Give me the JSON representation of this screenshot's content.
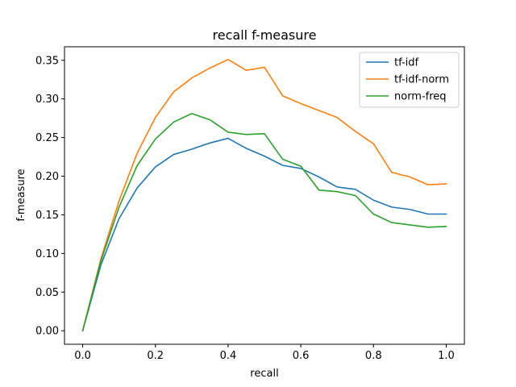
{
  "chart_data": {
    "type": "line",
    "title": "recall f-measure",
    "xlabel": "recall",
    "ylabel": "f-measure",
    "xlim": [
      -0.05,
      1.05
    ],
    "ylim": [
      -0.0175,
      0.3675
    ],
    "x_ticks": [
      0.0,
      0.2,
      0.4,
      0.6,
      0.8,
      1.0
    ],
    "x_tick_labels": [
      "0.0",
      "0.2",
      "0.4",
      "0.6",
      "0.8",
      "1.0"
    ],
    "y_ticks": [
      0.0,
      0.05,
      0.1,
      0.15,
      0.2,
      0.25,
      0.3,
      0.35
    ],
    "y_tick_labels": [
      "0.00",
      "0.05",
      "0.10",
      "0.15",
      "0.20",
      "0.25",
      "0.30",
      "0.35"
    ],
    "grid": false,
    "legend": "top-right",
    "x": [
      0.0,
      0.05,
      0.1,
      0.15,
      0.2,
      0.25,
      0.3,
      0.35,
      0.4,
      0.45,
      0.5,
      0.55,
      0.6,
      0.65,
      0.7,
      0.75,
      0.8,
      0.85,
      0.9,
      0.95,
      1.0
    ],
    "series": [
      {
        "name": "tf-idf",
        "color": "#1f77b4",
        "values": [
          0.0,
          0.085,
          0.145,
          0.185,
          0.212,
          0.228,
          0.235,
          0.243,
          0.249,
          0.236,
          0.226,
          0.214,
          0.21,
          0.199,
          0.186,
          0.183,
          0.169,
          0.16,
          0.157,
          0.151,
          0.151
        ]
      },
      {
        "name": "tf-idf-norm",
        "color": "#ff7f0e",
        "values": [
          0.0,
          0.093,
          0.168,
          0.23,
          0.276,
          0.309,
          0.327,
          0.34,
          0.351,
          0.337,
          0.341,
          0.304,
          0.294,
          0.285,
          0.276,
          0.258,
          0.242,
          0.205,
          0.199,
          0.189,
          0.19
        ]
      },
      {
        "name": "norm-freq",
        "color": "#2ca02c",
        "values": [
          0.0,
          0.09,
          0.16,
          0.214,
          0.248,
          0.27,
          0.281,
          0.273,
          0.257,
          0.254,
          0.255,
          0.222,
          0.213,
          0.182,
          0.18,
          0.175,
          0.151,
          0.14,
          0.137,
          0.134,
          0.135
        ]
      }
    ]
  }
}
